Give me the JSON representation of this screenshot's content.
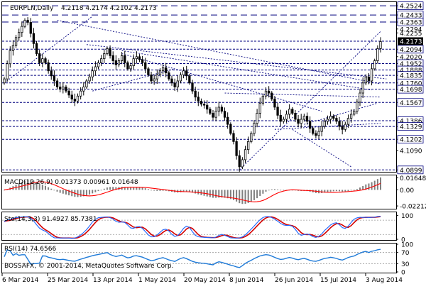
{
  "header": {
    "symbol": "EURPLN,Daily",
    "ohlc": "4.2118 4.2174 4.2102 4.2173"
  },
  "footer": {
    "copyright": "BOSSAFX, © 2001-2014, MetaQuotes Software Corp."
  },
  "colors": {
    "bull": "#000000",
    "bear": "#000000",
    "hline": "#00007f",
    "trend": "#00007f",
    "macd_hist": "#7f7f7f",
    "macd_signal": "#ff0000",
    "macd_signal_dark": "#7f0000",
    "stoch_main": "#1e64ff",
    "stoch_signal": "#d40000",
    "rsi": "#1e7ad8",
    "price_tag": "#ffffff"
  },
  "chart_data": [
    {
      "type": "candlestick",
      "panel": "price",
      "title": "EURPLN,Daily",
      "x_tick_labels": [
        "6 Mar 2014",
        "25 Mar 2014",
        "13 Apr 2014",
        "1 May 2014",
        "20 May 2014",
        "8 Jun 2014",
        "26 Jun 2014",
        "15 Jul 2014",
        "3 Aug 2014"
      ],
      "y_tick_labels": [
        "4.2524",
        "4.2433",
        "4.2363",
        "4.2294",
        "4.2255",
        "4.2173",
        "4.2094",
        "4.2020",
        "4.1952",
        "4.1888",
        "4.1835",
        "4.1760",
        "4.1698",
        "4.1567",
        "4.1386",
        "4.1329",
        "4.1202",
        "4.1090",
        "4.0899"
      ],
      "ylim": [
        4.088,
        4.256
      ],
      "horizontal_levels": [
        4.2524,
        4.2433,
        4.2363,
        4.2173,
        4.2094,
        4.1952,
        4.1888,
        4.1835,
        4.176,
        4.1698,
        4.1567,
        4.1386,
        4.1329,
        4.1202,
        4.0899
      ],
      "last_price": 4.2173,
      "close": [
        4.18,
        4.195,
        4.208,
        4.213,
        4.221,
        4.226,
        4.232,
        4.238,
        4.236,
        4.225,
        4.215,
        4.205,
        4.196,
        4.2,
        4.196,
        4.188,
        4.183,
        4.178,
        4.172,
        4.17,
        4.172,
        4.168,
        4.164,
        4.16,
        4.158,
        4.163,
        4.168,
        4.172,
        4.178,
        4.182,
        4.188,
        4.192,
        4.196,
        4.2,
        4.205,
        4.21,
        4.203,
        4.198,
        4.194,
        4.198,
        4.203,
        4.196,
        4.19,
        4.193,
        4.2,
        4.202,
        4.199,
        4.196,
        4.19,
        4.184,
        4.178,
        4.18,
        4.184,
        4.188,
        4.191,
        4.186,
        4.18,
        4.176,
        4.172,
        4.178,
        4.184,
        4.188,
        4.183,
        4.176,
        4.168,
        4.162,
        4.158,
        4.155,
        4.154,
        4.15,
        4.146,
        4.142,
        4.148,
        4.152,
        4.148,
        4.142,
        4.135,
        4.126,
        4.118,
        4.104,
        4.093,
        4.1,
        4.11,
        4.118,
        4.126,
        4.136,
        4.146,
        4.156,
        4.163,
        4.168,
        4.166,
        4.16,
        4.152,
        4.144,
        4.138,
        4.14,
        4.145,
        4.15,
        4.146,
        4.14,
        4.136,
        4.14,
        4.143,
        4.138,
        4.131,
        4.126,
        4.124,
        4.128,
        4.133,
        4.138,
        4.14,
        4.143,
        4.141,
        4.138,
        4.133,
        4.13,
        4.135,
        4.141,
        4.145,
        4.148,
        4.157,
        4.166,
        4.176,
        4.182,
        4.178,
        4.19,
        4.198,
        4.21,
        4.217
      ]
    },
    {
      "type": "histogram+line",
      "panel": "macd",
      "label": "MACD(12,26,9) 0.01373 0.00961 0.01648",
      "y_tick_labels": [
        "0.01648",
        "0.00",
        "-0.02212"
      ],
      "ylim": [
        -0.024,
        0.018
      ]
    },
    {
      "type": "line",
      "panel": "stochastic",
      "label": "Sto(14,3,3) 91.4927 85.7381",
      "y_tick_labels": [
        "100",
        "0"
      ],
      "ylim": [
        0,
        110
      ]
    },
    {
      "type": "line",
      "panel": "rsi",
      "label": "RSI(14) 74.6566",
      "y_tick_labels": [
        "100",
        "70",
        "30",
        "0"
      ],
      "ylim": [
        0,
        100
      ]
    }
  ]
}
